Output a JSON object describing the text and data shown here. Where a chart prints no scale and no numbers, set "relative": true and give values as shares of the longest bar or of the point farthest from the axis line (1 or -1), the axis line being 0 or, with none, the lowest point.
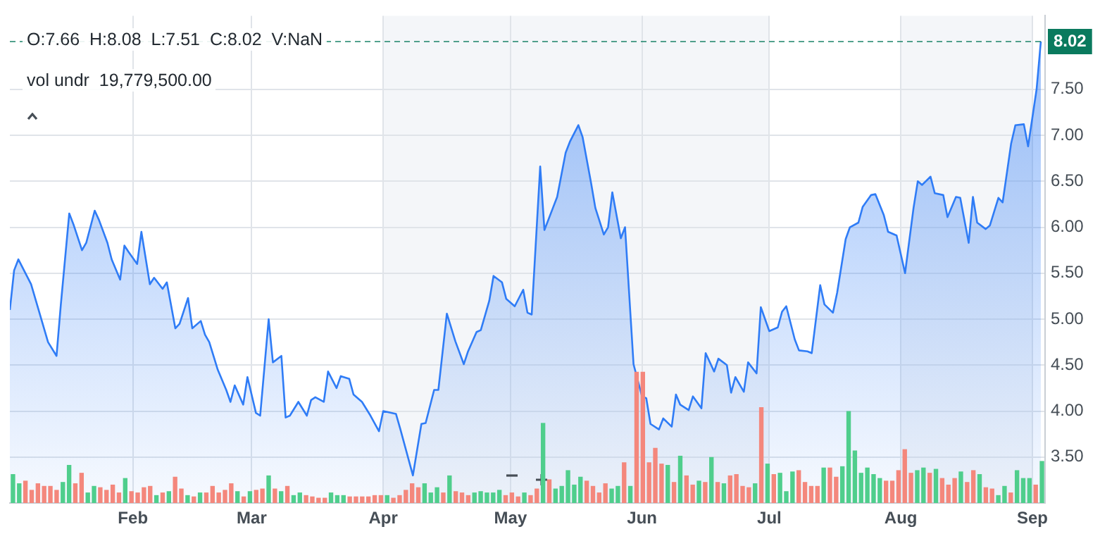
{
  "chart_data": [
    {
      "type": "area",
      "color": "#2f7cf6",
      "x": [
        "--01-03",
        "--01-04",
        "--01-05",
        "--01-08",
        "--01-12",
        "--01-14",
        "--01-15",
        "--01-17",
        "--01-18",
        "--01-20",
        "--01-21",
        "--01-23",
        "--01-24",
        "--01-26",
        "--01-27",
        "--01-29",
        "--01-30",
        "--01-31",
        "--02-02",
        "--02-03",
        "--02-05",
        "--02-06",
        "--02-08",
        "--02-09",
        "--02-11",
        "--02-12",
        "--02-14",
        "--02-15",
        "--02-17",
        "--02-18",
        "--02-19",
        "--02-21",
        "--02-23",
        "--02-24",
        "--02-25",
        "--02-27",
        "--02-28",
        "--03-02",
        "--03-03",
        "--03-05",
        "--03-06",
        "--03-08",
        "--03-09",
        "--03-10",
        "--03-12",
        "--03-14",
        "--03-15",
        "--03-16",
        "--03-18",
        "--03-19",
        "--03-21",
        "--03-22",
        "--03-24",
        "--03-25",
        "--03-27",
        "--03-29",
        "--03-31",
        "--04-01",
        "--04-04",
        "--04-05",
        "--04-08",
        "--04-10",
        "--04-11",
        "--04-13",
        "--04-14",
        "--04-16",
        "--04-18",
        "--04-20",
        "--04-21",
        "--04-23",
        "--04-24",
        "--04-26",
        "--04-27",
        "--04-29",
        "--04-30",
        "--05-02",
        "--05-04",
        "--05-05",
        "--05-06",
        "--05-08",
        "--05-09",
        "--05-11",
        "--05-12",
        "--05-14",
        "--05-15",
        "--05-17",
        "--05-18",
        "--05-20",
        "--05-21",
        "--05-23",
        "--05-24",
        "--05-25",
        "--05-27",
        "--05-28",
        "--05-30",
        "--06-01",
        "--06-02",
        "--06-03",
        "--06-05",
        "--06-06",
        "--06-08",
        "--06-09",
        "--06-10",
        "--06-12",
        "--06-13",
        "--06-15",
        "--06-16",
        "--06-18",
        "--06-19",
        "--06-21",
        "--06-22",
        "--06-23",
        "--06-25",
        "--06-26",
        "--06-28",
        "--06-29",
        "--07-01",
        "--07-03",
        "--07-04",
        "--07-05",
        "--07-07",
        "--07-08",
        "--07-10",
        "--07-11",
        "--07-13",
        "--07-14",
        "--07-16",
        "--07-17",
        "--07-19",
        "--07-20",
        "--07-22",
        "--07-23",
        "--07-25",
        "--07-26",
        "--07-28",
        "--07-29",
        "--07-31",
        "--08-02",
        "--08-04",
        "--08-05",
        "--08-06",
        "--08-08",
        "--08-09",
        "--08-11",
        "--08-12",
        "--08-14",
        "--08-15",
        "--08-17",
        "--08-18",
        "--08-19",
        "--08-21",
        "--08-22",
        "--08-24",
        "--08-25",
        "--08-27",
        "--08-28",
        "--08-30",
        "--08-31",
        "--09-02",
        "--09-03"
      ],
      "values": [
        5.1,
        5.53,
        5.65,
        5.38,
        4.75,
        4.6,
        5.15,
        6.15,
        6.03,
        5.75,
        5.83,
        6.18,
        6.08,
        5.83,
        5.65,
        5.43,
        5.8,
        5.73,
        5.6,
        5.95,
        5.38,
        5.45,
        5.33,
        5.4,
        4.9,
        4.95,
        5.23,
        4.9,
        4.98,
        4.83,
        4.75,
        4.45,
        4.23,
        4.1,
        4.28,
        4.07,
        4.37,
        3.98,
        3.95,
        5.0,
        4.53,
        4.6,
        3.93,
        3.95,
        4.1,
        3.95,
        4.12,
        4.15,
        4.1,
        4.43,
        4.25,
        4.38,
        4.35,
        4.18,
        4.1,
        3.95,
        3.78,
        4.0,
        3.97,
        3.81,
        3.3,
        3.86,
        3.87,
        4.23,
        4.23,
        5.06,
        4.76,
        4.51,
        4.65,
        4.86,
        4.88,
        5.2,
        5.47,
        5.4,
        5.22,
        5.14,
        5.32,
        5.07,
        5.05,
        6.66,
        5.97,
        6.21,
        6.33,
        6.81,
        6.93,
        7.11,
        6.98,
        6.48,
        6.21,
        5.92,
        6.0,
        6.38,
        5.88,
        6.0,
        4.51,
        4.16,
        4.14,
        3.86,
        3.8,
        3.92,
        3.83,
        4.18,
        4.07,
        4.01,
        4.16,
        4.03,
        4.63,
        4.43,
        4.57,
        4.5,
        4.2,
        4.37,
        4.21,
        4.53,
        4.41,
        5.13,
        4.87,
        4.91,
        5.08,
        5.14,
        4.78,
        4.66,
        4.65,
        4.63,
        5.37,
        5.16,
        5.07,
        5.29,
        5.87,
        6.0,
        6.05,
        6.22,
        6.35,
        6.36,
        6.13,
        5.95,
        5.91,
        5.5,
        6.21,
        6.5,
        6.46,
        6.55,
        6.37,
        6.35,
        6.11,
        6.33,
        6.32,
        5.83,
        6.33,
        6.05,
        5.98,
        6.02,
        6.32,
        6.27,
        6.91,
        7.11,
        7.12,
        6.88,
        7.5,
        8.02
      ],
      "xlim": [
        "--01-03",
        "--09-04"
      ],
      "ylim": [
        3.0,
        8.3
      ],
      "xticks": [
        {
          "value": "--02-01",
          "label": "Feb"
        },
        {
          "value": "--03-01",
          "label": "Mar"
        },
        {
          "value": "--04-01",
          "label": "Apr"
        },
        {
          "value": "--05-01",
          "label": "May"
        },
        {
          "value": "--06-01",
          "label": "Jun"
        },
        {
          "value": "--07-01",
          "label": "Jul"
        },
        {
          "value": "--08-01",
          "label": "Aug"
        },
        {
          "value": "--09-01",
          "label": "Sep"
        }
      ],
      "yticks": [
        {
          "value": 3.5,
          "label": "3.50"
        },
        {
          "value": 4,
          "label": "4.00"
        },
        {
          "value": 4.5,
          "label": "4.50"
        },
        {
          "value": 5,
          "label": "5.00"
        },
        {
          "value": 5.5,
          "label": "5.50"
        },
        {
          "value": 6,
          "label": "6.00"
        },
        {
          "value": 6.5,
          "label": "6.50"
        },
        {
          "value": 7,
          "label": "7.00"
        },
        {
          "value": 7.5,
          "label": "7.50"
        }
      ],
      "grid": true,
      "ref_lines": [
        {
          "axis": "y",
          "value": 8.02,
          "label": "8.02",
          "color": "#0a7a5e",
          "line_style": "dashed"
        }
      ],
      "bands": [
        {
          "axis": "x",
          "from": "--04-01",
          "to": "--07-01",
          "color": "#f4f6f9"
        },
        {
          "axis": "x",
          "from": "--08-01",
          "to": "--09-01",
          "color": "#f4f6f9"
        }
      ],
      "annotations": [
        "O:7.66  H:8.08  L:7.51  C:8.02  V:NaN"
      ]
    },
    {
      "type": "bar",
      "relative": true,
      "categories": [
        null,
        null,
        null,
        null,
        null,
        null,
        null,
        null,
        null,
        null,
        null,
        null,
        null,
        null,
        null,
        null,
        null,
        null,
        null,
        null,
        null,
        null,
        null,
        null,
        null,
        null,
        null,
        null,
        null,
        null,
        null,
        null,
        null,
        null,
        null,
        null,
        null,
        null,
        null,
        null,
        null,
        null,
        null,
        null,
        null,
        null,
        null,
        null,
        null,
        null,
        null,
        null,
        null,
        null,
        null,
        null,
        null,
        null,
        null,
        null,
        null,
        null,
        null,
        null,
        null,
        null,
        null,
        null,
        null,
        null,
        null,
        null,
        null,
        null,
        null,
        null,
        null,
        null,
        null,
        null,
        null,
        null,
        null,
        null,
        null,
        null,
        null,
        null,
        null,
        null,
        null,
        null,
        null,
        null,
        null,
        null,
        null,
        null,
        null,
        null,
        null,
        null,
        null,
        null,
        null,
        null,
        null,
        null,
        null,
        null,
        null,
        null,
        null,
        null,
        null,
        null,
        null,
        null,
        null,
        null,
        null,
        null,
        null,
        null,
        null,
        null,
        null,
        null,
        null,
        null,
        null,
        null,
        null,
        null,
        null,
        null,
        null,
        null,
        null,
        null,
        null,
        null,
        null,
        null,
        null,
        null,
        null,
        null,
        null,
        null,
        null,
        null,
        null,
        null,
        null,
        null,
        null,
        null,
        null,
        null,
        null,
        null,
        null,
        null,
        null,
        null
      ],
      "values": [
        0.22,
        0.15,
        0.17,
        0.1,
        0.15,
        0.13,
        0.13,
        0.1,
        0.16,
        0.29,
        0.15,
        0.23,
        0.08,
        0.13,
        0.12,
        0.1,
        0.14,
        0.08,
        0.19,
        0.09,
        0.08,
        0.12,
        0.13,
        0.06,
        0.08,
        0.09,
        0.2,
        0.11,
        0.06,
        0.05,
        0.08,
        0.08,
        0.13,
        0.08,
        0.1,
        0.15,
        0.09,
        0.05,
        0.09,
        0.1,
        0.11,
        0.21,
        0.11,
        0.09,
        0.13,
        0.06,
        0.08,
        0.06,
        0.05,
        0.04,
        0.04,
        0.08,
        0.06,
        0.06,
        0.05,
        0.05,
        0.05,
        0.05,
        0.06,
        0.06,
        0.06,
        0.04,
        0.06,
        0.1,
        0.15,
        0.12,
        0.15,
        0.08,
        0.12,
        0.08,
        0.21,
        0.09,
        0.08,
        0.06,
        0.08,
        0.09,
        0.08,
        0.08,
        0.1,
        0.06,
        0.08,
        0.05,
        0.08,
        0.06,
        0.11,
        0.61,
        0.18,
        0.11,
        0.13,
        0.25,
        0.14,
        0.2,
        0.17,
        0.13,
        0.08,
        0.15,
        0.11,
        0.13,
        0.31,
        0.13,
        1,
        1,
        0.31,
        0.42,
        0.3,
        0.29,
        0.16,
        0.36,
        0.21,
        0.14,
        0.17,
        0.16,
        0.35,
        0.16,
        0.15,
        0.21,
        0.22,
        0.13,
        0.12,
        0.15,
        0.73,
        0.3,
        0.22,
        0.23,
        0.09,
        0.24,
        0.25,
        0.16,
        0.13,
        0.13,
        0.27,
        0.27,
        0.2,
        0.28,
        0.7,
        0.4,
        0.23,
        0.27,
        0.22,
        0.19,
        0.17,
        0.17,
        0.25,
        0.41,
        0.23,
        0.25,
        0.27,
        0.23,
        0.26,
        0.19,
        0.14,
        0.19,
        0.24,
        0.16,
        0.25,
        0.22,
        0.12,
        0.11,
        0.06,
        0.13,
        0.08,
        0.25,
        0.19,
        0.19,
        0.14,
        0.32
      ],
      "colors": [
        "#4fce8c",
        "#4fce8c",
        "#f4877c",
        "#f4877c",
        "#f4877c",
        "#f4877c",
        "#f4877c",
        "#f4877c",
        "#4fce8c",
        "#4fce8c",
        "#f4877c",
        "#f4877c",
        "#4fce8c",
        "#4fce8c",
        "#f4877c",
        "#f4877c",
        "#f4877c",
        "#f4877c",
        "#4fce8c",
        "#f4877c",
        "#f4877c",
        "#f4877c",
        "#f4877c",
        "#4fce8c",
        "#f4877c",
        "#4fce8c",
        "#f4877c",
        "#f4877c",
        "#4fce8c",
        "#f4877c",
        "#4fce8c",
        "#f4877c",
        "#f4877c",
        "#f4877c",
        "#f4877c",
        "#f4877c",
        "#4fce8c",
        "#f4877c",
        "#4fce8c",
        "#f4877c",
        "#f4877c",
        "#4fce8c",
        "#f4877c",
        "#4fce8c",
        "#f4877c",
        "#4fce8c",
        "#4fce8c",
        "#f4877c",
        "#f4877c",
        "#f4877c",
        "#f4877c",
        "#4fce8c",
        "#4fce8c",
        "#4fce8c",
        "#f4877c",
        "#f4877c",
        "#f4877c",
        "#f4877c",
        "#f4877c",
        "#f4877c",
        "#4fce8c",
        "#f4877c",
        "#f4877c",
        "#f4877c",
        "#f4877c",
        "#f4877c",
        "#4fce8c",
        "#4fce8c",
        "#4fce8c",
        "#f4877c",
        "#4fce8c",
        "#f4877c",
        "#f4877c",
        "#f4877c",
        "#4fce8c",
        "#4fce8c",
        "#4fce8c",
        "#4fce8c",
        "#4fce8c",
        "#f4877c",
        "#f4877c",
        "#f4877c",
        "#4fce8c",
        "#f4877c",
        "#f4877c",
        "#4fce8c",
        "#f4877c",
        "#4fce8c",
        "#4fce8c",
        "#4fce8c",
        "#4fce8c",
        "#4fce8c",
        "#f4877c",
        "#f4877c",
        "#f4877c",
        "#f4877c",
        "#4fce8c",
        "#4fce8c",
        "#f4877c",
        "#4fce8c",
        "#f4877c",
        "#f4877c",
        "#f4877c",
        "#f4877c",
        "#f4877c",
        "#4fce8c",
        "#f4877c",
        "#4fce8c",
        "#f4877c",
        "#f4877c",
        "#4fce8c",
        "#f4877c",
        "#4fce8c",
        "#f4877c",
        "#4fce8c",
        "#f4877c",
        "#f4877c",
        "#f4877c",
        "#f4877c",
        "#4fce8c",
        "#f4877c",
        "#4fce8c",
        "#f4877c",
        "#4fce8c",
        "#4fce8c",
        "#4fce8c",
        "#f4877c",
        "#f4877c",
        "#f4877c",
        "#f4877c",
        "#4fce8c",
        "#f4877c",
        "#f4877c",
        "#4fce8c",
        "#4fce8c",
        "#4fce8c",
        "#4fce8c",
        "#4fce8c",
        "#4fce8c",
        "#4fce8c",
        "#f4877c",
        "#f4877c",
        "#f4877c",
        "#f4877c",
        "#f4877c",
        "#4fce8c",
        "#4fce8c",
        "#f4877c",
        "#4fce8c",
        "#f4877c",
        "#f4877c",
        "#f4877c",
        "#4fce8c",
        "#f4877c",
        "#f4877c",
        "#4fce8c",
        "#f4877c",
        "#f4877c",
        "#4fce8c",
        "#4fce8c",
        "#f4877c",
        "#4fce8c",
        "#4fce8c",
        "#4fce8c",
        "#f4877c",
        "#4fce8c"
      ],
      "annotations": [
        "vol undr  19,779,500.00"
      ]
    }
  ]
}
